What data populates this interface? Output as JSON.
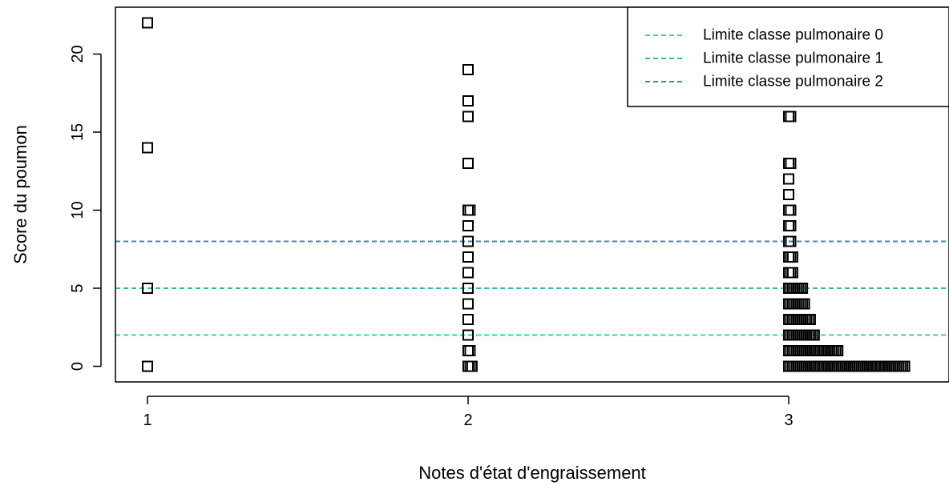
{
  "chart_data": {
    "type": "scatter",
    "title": "",
    "xlabel": "Notes d'état d'engraissement",
    "ylabel": "Score du poumon",
    "xlim": [
      0.9,
      3.5
    ],
    "ylim": [
      -1,
      23
    ],
    "x_ticks": [
      "1",
      "2",
      "3"
    ],
    "y_ticks": [
      "0",
      "5",
      "10",
      "15",
      "20"
    ],
    "grid": false,
    "legend_position": "top-right",
    "reference_lines": [
      {
        "name": "Limite classe pulmonaire 0",
        "y": 2,
        "color": "#3fd0a8"
      },
      {
        "name": "Limite classe pulmonaire 1",
        "y": 5,
        "color": "#3bb3ae"
      },
      {
        "name": "Limite classe pulmonaire 2",
        "y": 8,
        "color": "#3a8fa5"
      }
    ],
    "points": [
      {
        "x": 1,
        "y": 0,
        "n": 1
      },
      {
        "x": 1,
        "y": 5,
        "n": 1
      },
      {
        "x": 1,
        "y": 14,
        "n": 1
      },
      {
        "x": 1,
        "y": 22,
        "n": 1
      },
      {
        "x": 2,
        "y": 0,
        "n": 3
      },
      {
        "x": 2,
        "y": 1,
        "n": 2
      },
      {
        "x": 2,
        "y": 2,
        "n": 1
      },
      {
        "x": 2,
        "y": 3,
        "n": 1
      },
      {
        "x": 2,
        "y": 4,
        "n": 1
      },
      {
        "x": 2,
        "y": 5,
        "n": 1
      },
      {
        "x": 2,
        "y": 6,
        "n": 1
      },
      {
        "x": 2,
        "y": 7,
        "n": 1
      },
      {
        "x": 2,
        "y": 8,
        "n": 1
      },
      {
        "x": 2,
        "y": 9,
        "n": 1
      },
      {
        "x": 2,
        "y": 10,
        "n": 2
      },
      {
        "x": 2,
        "y": 13,
        "n": 1
      },
      {
        "x": 2,
        "y": 16,
        "n": 1
      },
      {
        "x": 2,
        "y": 17,
        "n": 1
      },
      {
        "x": 2,
        "y": 19,
        "n": 1
      },
      {
        "x": 3,
        "y": 0,
        "n": 60
      },
      {
        "x": 3,
        "y": 1,
        "n": 26
      },
      {
        "x": 3,
        "y": 2,
        "n": 14
      },
      {
        "x": 3,
        "y": 3,
        "n": 12
      },
      {
        "x": 3,
        "y": 4,
        "n": 9
      },
      {
        "x": 3,
        "y": 5,
        "n": 8
      },
      {
        "x": 3,
        "y": 6,
        "n": 3
      },
      {
        "x": 3,
        "y": 7,
        "n": 3
      },
      {
        "x": 3,
        "y": 8,
        "n": 2
      },
      {
        "x": 3,
        "y": 9,
        "n": 2
      },
      {
        "x": 3,
        "y": 10,
        "n": 2
      },
      {
        "x": 3,
        "y": 11,
        "n": 1
      },
      {
        "x": 3,
        "y": 12,
        "n": 1
      },
      {
        "x": 3,
        "y": 13,
        "n": 2
      },
      {
        "x": 3,
        "y": 16,
        "n": 2
      }
    ]
  }
}
